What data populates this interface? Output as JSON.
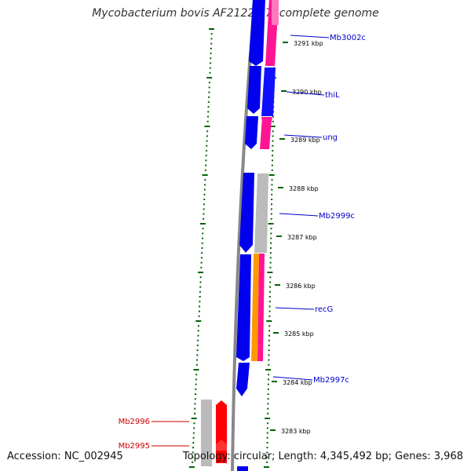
{
  "title": "Mycobacterium bovis AF2122/97, complete genome",
  "accession": "Accession: NC_002945",
  "stats": "Topology: circular; Length: 4,345,492 bp; Genes: 3,968",
  "colors": {
    "cds_forward": "#0000ee",
    "cds_reverse_red": "#ff0000",
    "pink": "#ff1493",
    "grey": "#bbbbbb",
    "orange": "#ff9900",
    "ticks": "#006400",
    "label_blue": "#0000cc",
    "label_red": "#cc0000"
  },
  "kbp_ticks": [
    {
      "kbp": 3291,
      "label": "3291 kbp"
    },
    {
      "kbp": 3290,
      "label": "3290 kbp"
    },
    {
      "kbp": 3289,
      "label": "3289 kbp"
    },
    {
      "kbp": 3288,
      "label": "3288 kbp"
    },
    {
      "kbp": 3287,
      "label": "3287 kbp"
    },
    {
      "kbp": 3286,
      "label": "3286 kbp"
    },
    {
      "kbp": 3285,
      "label": "3285 kbp"
    },
    {
      "kbp": 3284,
      "label": "3284 kbp"
    },
    {
      "kbp": 3283,
      "label": "3283 kbp"
    }
  ],
  "gene_labels": {
    "right": [
      "Mb3002c",
      "thiL",
      "ung",
      "Mb2999c",
      "recG",
      "Mb2997c"
    ],
    "left": [
      "Mb2996",
      "Mb2995"
    ]
  }
}
